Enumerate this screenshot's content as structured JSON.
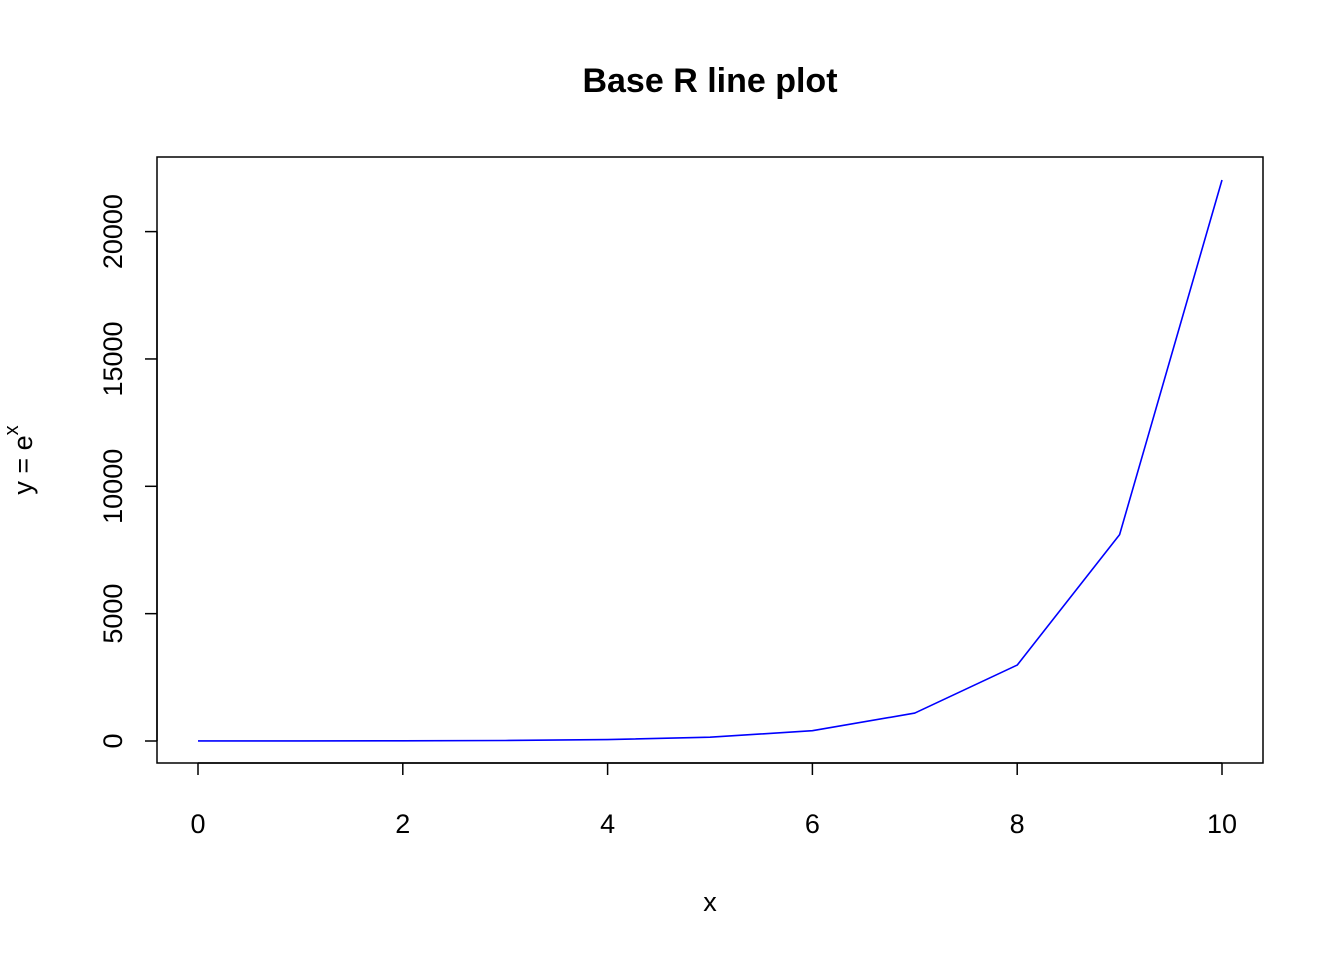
{
  "chart_data": {
    "type": "line",
    "title": "Base R line plot",
    "xlabel": "x",
    "ylabel": "y = e",
    "ylabel_superscript": "x",
    "xlim": [
      0,
      10
    ],
    "ylim": [
      0,
      22026.47
    ],
    "xticks": [
      0,
      2,
      4,
      6,
      8,
      10
    ],
    "yticks": [
      0,
      5000,
      10000,
      15000,
      20000
    ],
    "series": [
      {
        "color": "#0000ff",
        "x": [
          0,
          1,
          2,
          3,
          4,
          5,
          6,
          7,
          8,
          9,
          10
        ],
        "y": [
          1,
          2.72,
          7.39,
          20.09,
          54.6,
          148.41,
          403.43,
          1096.63,
          2980.96,
          8103.08,
          22026.47
        ]
      }
    ],
    "grid": false,
    "legend": "none"
  }
}
